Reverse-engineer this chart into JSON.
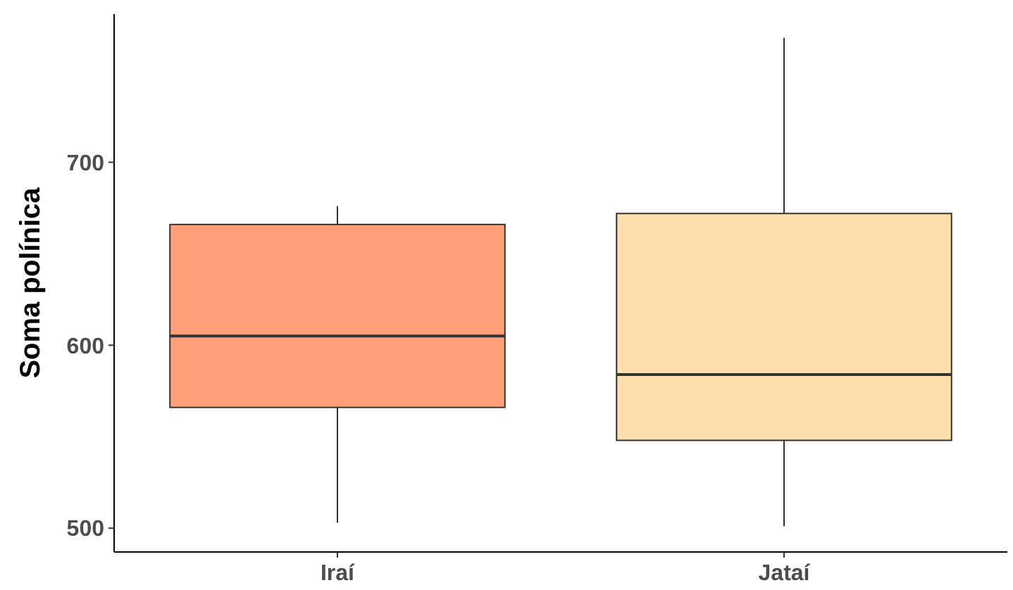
{
  "chart_data": {
    "type": "box",
    "ylabel": "Soma polínica",
    "categories": [
      "Iraí",
      "Jataí"
    ],
    "boxes": [
      {
        "low": 503,
        "q1": 566,
        "median": 605,
        "q3": 666,
        "high": 676
      },
      {
        "low": 501,
        "q1": 548,
        "median": 584,
        "q3": 672,
        "high": 768
      }
    ],
    "colors": [
      "#ffa07a",
      "#ffdead"
    ],
    "ylim": [
      487,
      781
    ],
    "yticks": [
      500,
      600,
      700
    ],
    "grid": false
  }
}
